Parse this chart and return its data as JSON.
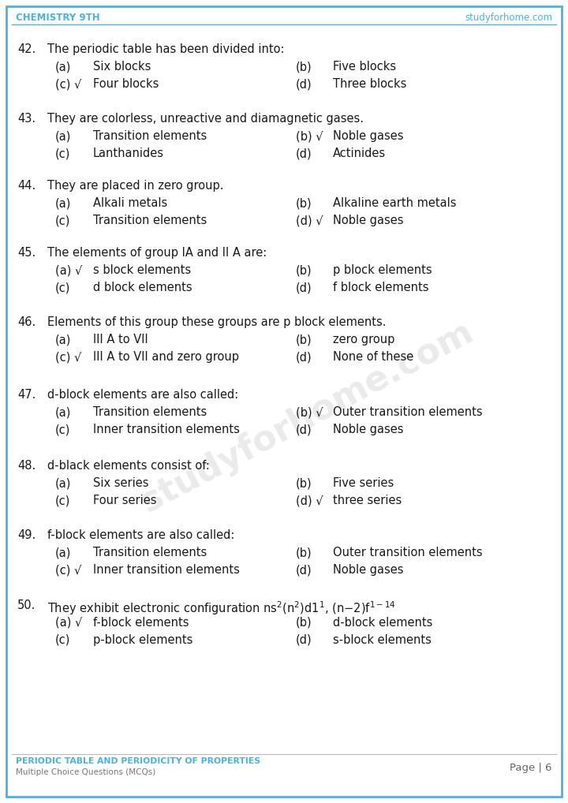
{
  "header_left": "CHEMISTRY 9TH",
  "header_right": "studyforhome.com",
  "header_color": "#4ab3e0",
  "footer_title": "PERIODIC TABLE AND PERIODICITY OF PROPERTIES",
  "footer_subtitle": "Multiple Choice Questions (MCQs)",
  "footer_page": "Page | 6",
  "footer_color": "#4ab3e0",
  "bg_color": "#ffffff",
  "border_color": "#4ab3e0",
  "text_color": "#1a1a1a",
  "watermark": "studyforhome.com",
  "questions": [
    {
      "num": "42.",
      "question": "The periodic table has been divided into:",
      "a_label": "(a)",
      "a_text": "Six blocks",
      "b_label": "(b)",
      "b_text": "Five blocks",
      "c_label": "(c) √",
      "c_text": "Four blocks",
      "d_label": "(d)",
      "d_text": "Three blocks"
    },
    {
      "num": "43.",
      "question": "They are colorless, unreactive and diamagnetic gases.",
      "a_label": "(a)",
      "a_text": "Transition elements",
      "b_label": "(b) √",
      "b_text": "Noble gases",
      "c_label": "(c)",
      "c_text": "Lanthanides",
      "d_label": "(d)",
      "d_text": "Actinides"
    },
    {
      "num": "44.",
      "question": "They are placed in zero group.",
      "a_label": "(a)",
      "a_text": "Alkali metals",
      "b_label": "(b)",
      "b_text": "Alkaline earth metals",
      "c_label": "(c)",
      "c_text": "Transition elements",
      "d_label": "(d) √",
      "d_text": "Noble gases"
    },
    {
      "num": "45.",
      "question": "The elements of group IA and II A are:",
      "a_label": "(a) √",
      "a_text": "s block elements",
      "b_label": "(b)",
      "b_text": "p block elements",
      "c_label": "(c)",
      "c_text": "d block elements",
      "d_label": "(d)",
      "d_text": "f block elements"
    },
    {
      "num": "46.",
      "question": "Elements of this group these groups are p block elements.",
      "a_label": "(a)",
      "a_text": "III A to VII",
      "b_label": "(b)",
      "b_text": "zero group",
      "c_label": "(c) √",
      "c_text": "III A to VII and zero group",
      "d_label": "(d)",
      "d_text": "None of these"
    },
    {
      "num": "47.",
      "question": "d-block elements are also called:",
      "a_label": "(a)",
      "a_text": "Transition elements",
      "b_label": "(b) √",
      "b_text": "Outer transition elements",
      "c_label": "(c)",
      "c_text": "Inner transition elements",
      "d_label": "(d)",
      "d_text": "Noble gases"
    },
    {
      "num": "48.",
      "question": "d-black elements consist of:",
      "a_label": "(a)",
      "a_text": "Six series",
      "b_label": "(b)",
      "b_text": "Five series",
      "c_label": "(c)",
      "c_text": "Four series",
      "d_label": "(d) √",
      "d_text": "three series"
    },
    {
      "num": "49.",
      "question": "f-block elements are also called:",
      "a_label": "(a)",
      "a_text": "Transition elements",
      "b_label": "(b)",
      "b_text": "Outer transition elements",
      "c_label": "(c) √",
      "c_text": "Inner transition elements",
      "d_label": "(d)",
      "d_text": "Noble gases"
    },
    {
      "num": "50.",
      "question": "q50_special",
      "a_label": "(a) √",
      "a_text": "f-block elements",
      "b_label": "(b)",
      "b_text": "d-block elements",
      "c_label": "(c)",
      "c_text": "p-block elements",
      "d_label": "(d)",
      "d_text": "s-block elements"
    }
  ]
}
